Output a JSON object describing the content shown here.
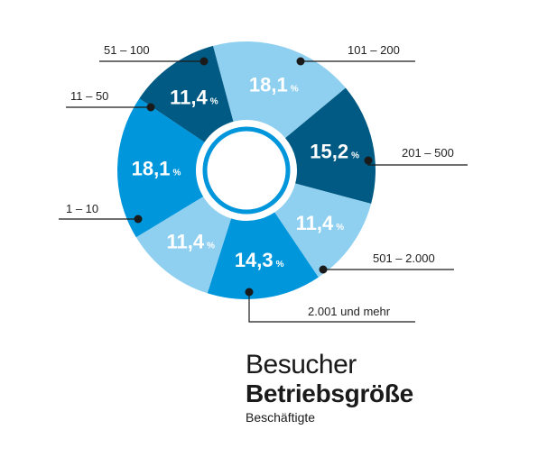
{
  "chart_data": {
    "type": "pie",
    "variant": "donut",
    "title": "Besucher",
    "subtitle": "Betriebsgröße",
    "caption": "Beschäftigte",
    "unit": "%",
    "slices": [
      {
        "label": "101 – 200",
        "value": 18.1,
        "display": "18,1",
        "color": "#8fd0f1"
      },
      {
        "label": "201 – 500",
        "value": 15.2,
        "display": "15,2",
        "color": "#005a83"
      },
      {
        "label": "501 – 2.000",
        "value": 11.4,
        "display": "11,4",
        "color": "#8fd0f1"
      },
      {
        "label": "2.001 und mehr",
        "value": 14.3,
        "display": "14,3",
        "color": "#0096dc"
      },
      {
        "label": "1 – 10",
        "value": 11.4,
        "display": "11,4",
        "color": "#8fd0f1"
      },
      {
        "label": "11 – 50",
        "value": 18.1,
        "display": "18,1",
        "color": "#0096dc"
      },
      {
        "label": "51 – 100",
        "value": 11.4,
        "display": "11,4",
        "color": "#005a83"
      }
    ]
  }
}
